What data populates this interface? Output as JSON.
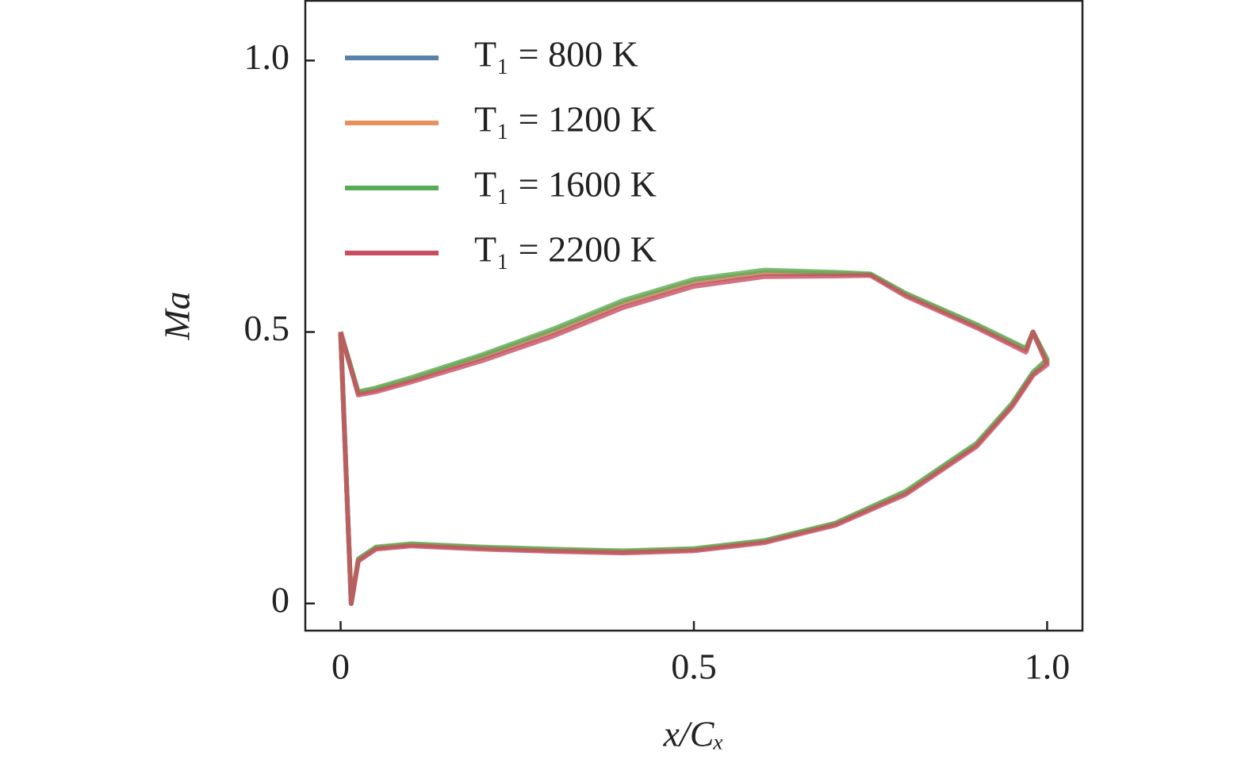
{
  "chart_data": {
    "type": "line",
    "x_label": "x/Cₓ",
    "y_label": "Ma",
    "x": [
      0,
      0.025,
      0.05,
      0.1,
      0.2,
      0.3,
      0.4,
      0.5,
      0.6,
      0.7,
      0.75,
      0.8,
      0.9,
      0.97,
      0.98,
      1.0,
      0.98,
      0.95,
      0.9,
      0.8,
      0.7,
      0.6,
      0.5,
      0.4,
      0.3,
      0.2,
      0.1,
      0.05,
      0.025,
      0.015,
      0
    ],
    "series": [
      {
        "name": "T₁ = 800 K",
        "color": "#5b80aa",
        "values": [
          0.5,
          0.387,
          0.394,
          0.412,
          0.453,
          0.499,
          0.552,
          0.591,
          0.608,
          0.607,
          0.606,
          0.569,
          0.511,
          0.467,
          0.5,
          0.445,
          0.423,
          0.365,
          0.292,
          0.204,
          0.146,
          0.114,
          0.099,
          0.095,
          0.098,
          0.102,
          0.108,
          0.102,
          0.08,
          0,
          0.5
        ]
      },
      {
        "name": "T₁ = 1200 K",
        "color": "#e8915c",
        "values": [
          0.5,
          0.388,
          0.395,
          0.413,
          0.455,
          0.501,
          0.554,
          0.593,
          0.61,
          0.608,
          0.606,
          0.57,
          0.512,
          0.468,
          0.5,
          0.447,
          0.424,
          0.366,
          0.293,
          0.205,
          0.147,
          0.115,
          0.1,
          0.096,
          0.099,
          0.103,
          0.109,
          0.103,
          0.081,
          0,
          0.5
        ]
      },
      {
        "name": "T₁ = 1600 K",
        "color": "#5aab55",
        "values": [
          0.5,
          0.39,
          0.397,
          0.416,
          0.458,
          0.505,
          0.558,
          0.597,
          0.614,
          0.61,
          0.607,
          0.571,
          0.514,
          0.47,
          0.5,
          0.45,
          0.426,
          0.368,
          0.295,
          0.207,
          0.148,
          0.116,
          0.101,
          0.097,
          0.1,
          0.104,
          0.11,
          0.104,
          0.082,
          0,
          0.5
        ]
      },
      {
        "name": "T₁ = 2200 K",
        "color": "#c94d60",
        "values": [
          0.5,
          0.384,
          0.39,
          0.408,
          0.447,
          0.492,
          0.545,
          0.584,
          0.602,
          0.603,
          0.604,
          0.566,
          0.508,
          0.463,
          0.5,
          0.44,
          0.42,
          0.362,
          0.289,
          0.201,
          0.144,
          0.112,
          0.097,
          0.093,
          0.096,
          0.1,
          0.106,
          0.1,
          0.078,
          0,
          0.5
        ]
      }
    ],
    "xlim": [
      -0.05,
      1.05
    ],
    "ylim": [
      -0.05,
      1.11
    ],
    "xticks": [
      0,
      0.5,
      {
        "value": 1,
        "label": "1.0"
      }
    ],
    "yticks": [
      0,
      0.5,
      {
        "value": 1,
        "label": "1.0"
      }
    ],
    "legend": "upper left"
  }
}
